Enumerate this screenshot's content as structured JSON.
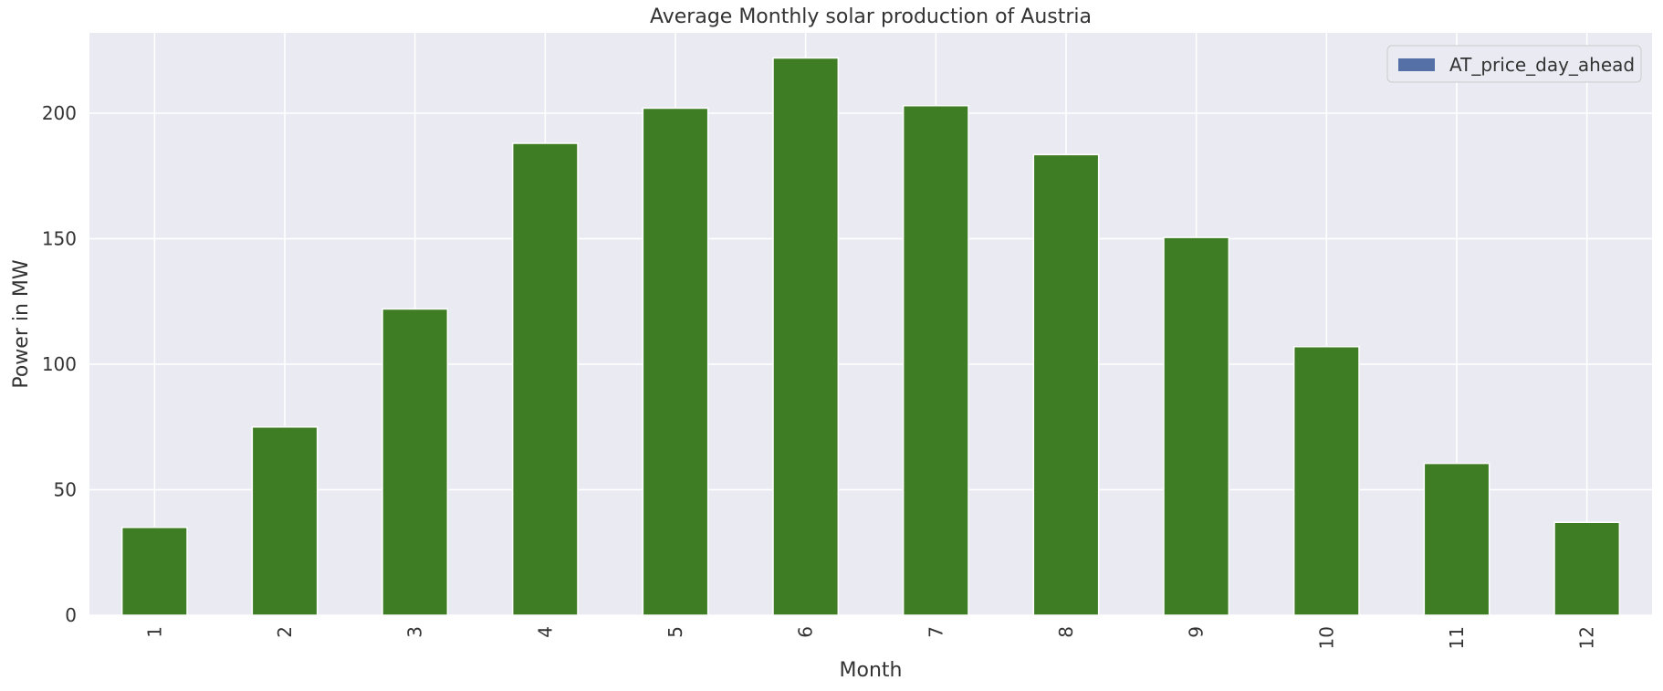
{
  "chart_data": {
    "type": "bar",
    "title": "Average Monthly solar production of Austria",
    "xlabel": "Month",
    "ylabel": "Power in MW",
    "categories": [
      "1",
      "2",
      "3",
      "4",
      "5",
      "6",
      "7",
      "8",
      "9",
      "10",
      "11",
      "12"
    ],
    "series": [
      {
        "name": "AT_price_day_ahead",
        "values": [
          35,
          75,
          122,
          188,
          202,
          222,
          203,
          183.5,
          150.5,
          107,
          60.5,
          37
        ],
        "bar_color": "#3f7d24",
        "legend_color": "#5470a6"
      }
    ],
    "ylim": [
      0,
      232
    ],
    "yticks": [
      0,
      50,
      100,
      150,
      200
    ],
    "grid": true,
    "legend_position": "top-right",
    "background_color": "#eaeaf2",
    "grid_color": "#ffffff"
  }
}
